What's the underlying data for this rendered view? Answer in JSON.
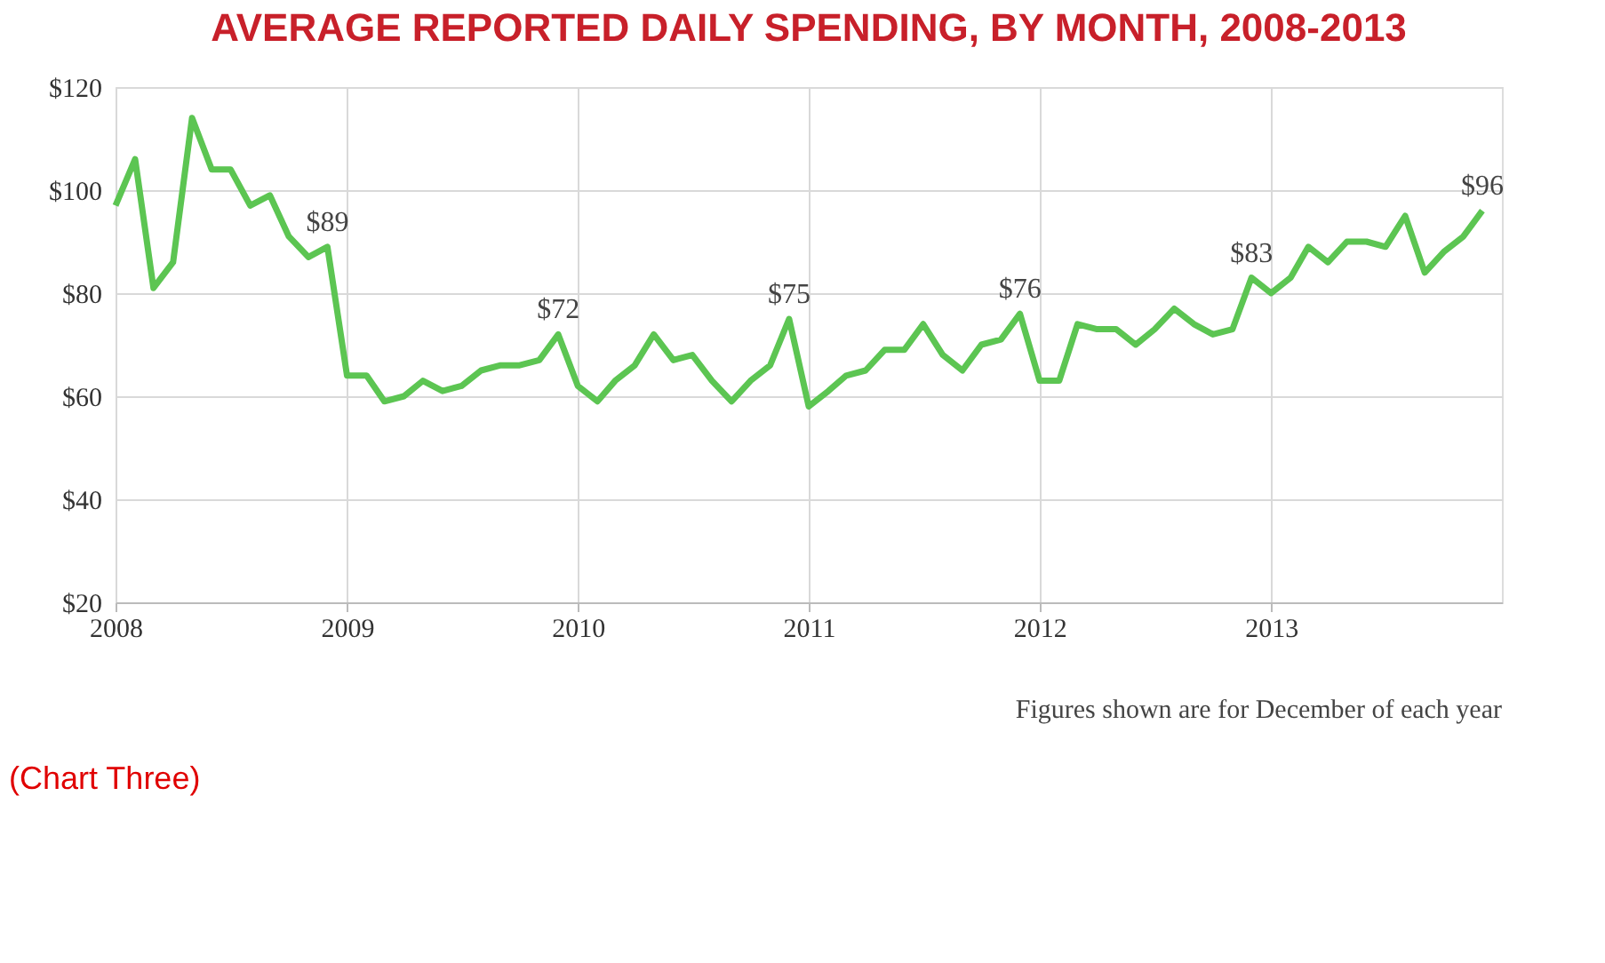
{
  "chart_data": {
    "type": "line",
    "title": "AVERAGE REPORTED DAILY SPENDING, BY MONTH, 2008-2013",
    "x": [
      "2008-01",
      "2008-02",
      "2008-03",
      "2008-04",
      "2008-05",
      "2008-06",
      "2008-07",
      "2008-08",
      "2008-09",
      "2008-10",
      "2008-11",
      "2008-12",
      "2009-01",
      "2009-02",
      "2009-03",
      "2009-04",
      "2009-05",
      "2009-06",
      "2009-07",
      "2009-08",
      "2009-09",
      "2009-10",
      "2009-11",
      "2009-12",
      "2010-01",
      "2010-02",
      "2010-03",
      "2010-04",
      "2010-05",
      "2010-06",
      "2010-07",
      "2010-08",
      "2010-09",
      "2010-10",
      "2010-11",
      "2010-12",
      "2011-01",
      "2011-02",
      "2011-03",
      "2011-04",
      "2011-05",
      "2011-06",
      "2011-07",
      "2011-08",
      "2011-09",
      "2011-10",
      "2011-11",
      "2011-12",
      "2012-01",
      "2012-02",
      "2012-03",
      "2012-04",
      "2012-05",
      "2012-06",
      "2012-07",
      "2012-08",
      "2012-09",
      "2012-10",
      "2012-11",
      "2012-12",
      "2013-01",
      "2013-02",
      "2013-03",
      "2013-04",
      "2013-05",
      "2013-06",
      "2013-07",
      "2013-08",
      "2013-09",
      "2013-10",
      "2013-11",
      "2013-12"
    ],
    "series": [
      {
        "color": "#5cc552",
        "values": [
          97,
          106,
          81,
          86,
          114,
          104,
          104,
          97,
          99,
          91,
          87,
          89,
          64,
          64,
          59,
          60,
          63,
          61,
          62,
          65,
          66,
          66,
          67,
          72,
          62,
          59,
          63,
          66,
          72,
          67,
          68,
          63,
          59,
          63,
          66,
          75,
          58,
          61,
          64,
          65,
          69,
          69,
          74,
          68,
          65,
          70,
          71,
          76,
          63,
          63,
          74,
          73,
          73,
          70,
          73,
          77,
          74,
          72,
          73,
          83,
          80,
          83,
          89,
          86,
          90,
          90,
          89,
          95,
          84,
          88,
          91,
          96
        ],
        "value_labels": [
          null,
          null,
          null,
          null,
          null,
          null,
          null,
          null,
          null,
          null,
          null,
          "$89",
          null,
          null,
          null,
          null,
          null,
          null,
          null,
          null,
          null,
          null,
          null,
          "$72",
          null,
          null,
          null,
          null,
          null,
          null,
          null,
          null,
          null,
          null,
          null,
          "$75",
          null,
          null,
          null,
          null,
          null,
          null,
          null,
          null,
          null,
          null,
          null,
          "$76",
          null,
          null,
          null,
          null,
          null,
          null,
          null,
          null,
          null,
          null,
          null,
          "$83",
          null,
          null,
          null,
          null,
          null,
          null,
          null,
          null,
          null,
          null,
          null,
          "$96"
        ]
      }
    ],
    "xlim": [
      "2008-01",
      "2014-01"
    ],
    "xticks": [
      "2008",
      "2009",
      "2010",
      "2011",
      "2012",
      "2013"
    ],
    "ylim": [
      20,
      120
    ],
    "yticks": [
      {
        "value": 20,
        "label": "$20"
      },
      {
        "value": 40,
        "label": "$40"
      },
      {
        "value": 60,
        "label": "$60"
      },
      {
        "value": 80,
        "label": "$80"
      },
      {
        "value": 100,
        "label": "$100"
      },
      {
        "value": 120,
        "label": "$120"
      }
    ],
    "grid": true,
    "marker": "none",
    "line_style": "solid",
    "annotations": [
      "Figures shown are for December of each year",
      "(Chart Three)"
    ]
  }
}
